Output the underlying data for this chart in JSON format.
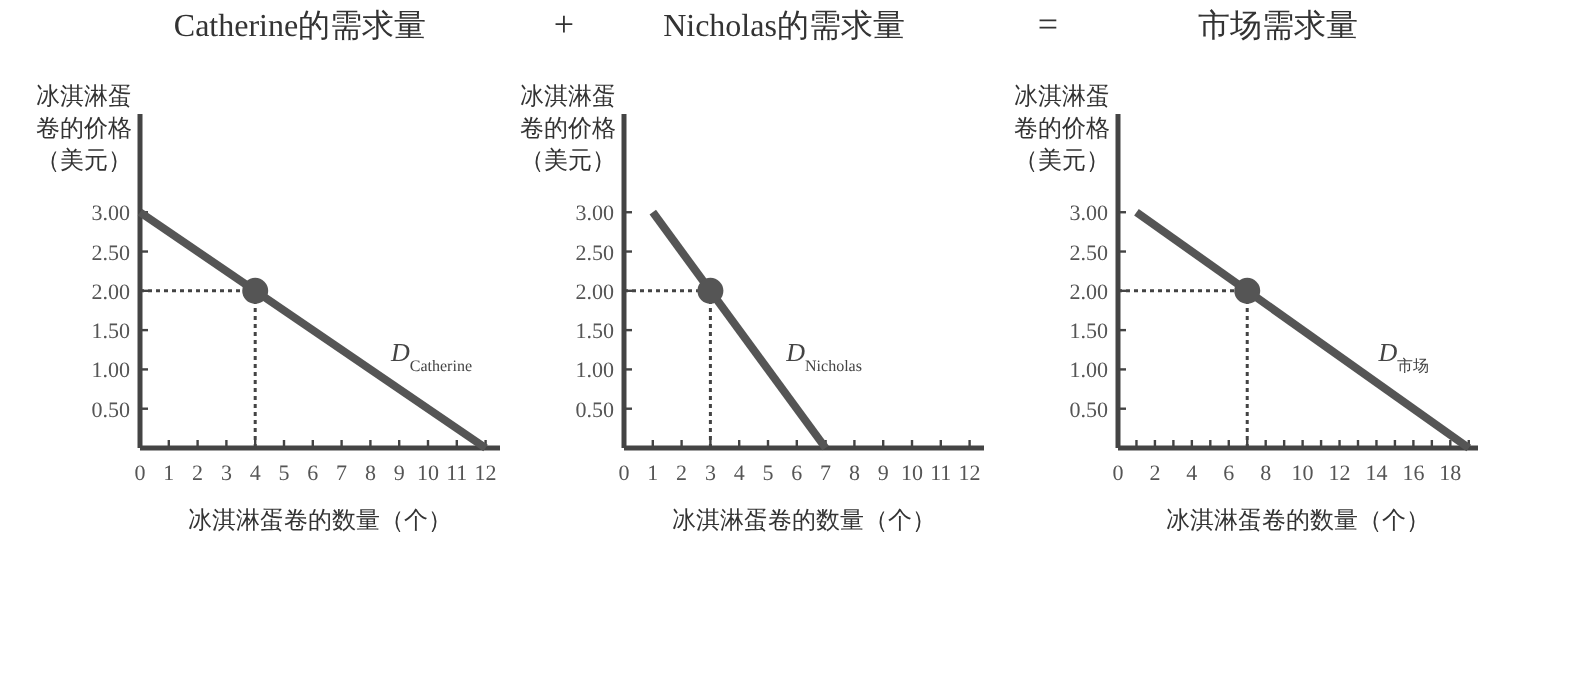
{
  "chart_data": [
    {
      "type": "line",
      "title": "Catherine的需求量",
      "xlabel": "冰淇淋蛋卷的数量（个）",
      "ylabel": "冰淇淋蛋卷的价格（美元）",
      "annotations": [
        "+"
      ],
      "grid": false,
      "series": [
        {
          "name": "D$_{Catherine}$",
          "color": "#555555",
          "x": [
            0,
            12
          ],
          "values": [
            3,
            0
          ]
        },
        {
          "type": "scatter",
          "marker": "circle",
          "color": "#555555",
          "x": [
            4
          ],
          "values": [
            2
          ]
        }
      ],
      "ref_lines": [
        {
          "axis": "x",
          "value": 4,
          "line_style": "dotted"
        },
        {
          "axis": "y",
          "value": 2,
          "line_style": "dotted"
        }
      ],
      "xlim": [
        0,
        12.5
      ],
      "ylim": [
        0,
        4.25
      ],
      "xticks": [
        0,
        1,
        2,
        3,
        4,
        5,
        6,
        7,
        8,
        9,
        10,
        11,
        12
      ],
      "yticks": [
        {
          "value": 0.5,
          "label": "0.50"
        },
        {
          "value": 1,
          "label": "1.00"
        },
        {
          "value": 1.5,
          "label": "1.50"
        },
        {
          "value": 2,
          "label": "2.00"
        },
        {
          "value": 2.5,
          "label": "2.50"
        },
        {
          "value": 3,
          "label": "3.00"
        }
      ]
    },
    {
      "type": "line",
      "title": "Nicholas的需求量",
      "xlabel": "冰淇淋蛋卷的数量（个）",
      "ylabel": "冰淇淋蛋卷的价格（美元）",
      "annotations": [
        "="
      ],
      "grid": false,
      "series": [
        {
          "name": "D$_{Nicholas}$",
          "color": "#555555",
          "x": [
            1,
            7
          ],
          "values": [
            3,
            0
          ]
        },
        {
          "type": "scatter",
          "marker": "circle",
          "color": "#555555",
          "x": [
            3
          ],
          "values": [
            2
          ]
        }
      ],
      "ref_lines": [
        {
          "axis": "x",
          "value": 3,
          "line_style": "dotted"
        },
        {
          "axis": "y",
          "value": 2,
          "line_style": "dotted"
        }
      ],
      "xlim": [
        0,
        12.5
      ],
      "ylim": [
        0,
        4.25
      ],
      "xticks": [
        0,
        1,
        2,
        3,
        4,
        5,
        6,
        7,
        8,
        9,
        10,
        11,
        12
      ],
      "yticks": [
        {
          "value": 0.5,
          "label": "0.50"
        },
        {
          "value": 1,
          "label": "1.00"
        },
        {
          "value": 1.5,
          "label": "1.50"
        },
        {
          "value": 2,
          "label": "2.00"
        },
        {
          "value": 2.5,
          "label": "2.50"
        },
        {
          "value": 3,
          "label": "3.00"
        }
      ]
    },
    {
      "type": "line",
      "title": "市场需求量",
      "xlabel": "冰淇淋蛋卷的数量（个）",
      "ylabel": "冰淇淋蛋卷的价格（美元）",
      "grid": false,
      "series": [
        {
          "name": "D$_{市场}$",
          "color": "#555555",
          "x": [
            1,
            19
          ],
          "values": [
            3,
            0
          ]
        },
        {
          "type": "scatter",
          "marker": "circle",
          "color": "#555555",
          "x": [
            7
          ],
          "values": [
            2
          ]
        }
      ],
      "ref_lines": [
        {
          "axis": "x",
          "value": 7,
          "line_style": "dotted"
        },
        {
          "axis": "y",
          "value": 2,
          "line_style": "dotted"
        }
      ],
      "xlim": [
        0,
        19.5
      ],
      "ylim": [
        0,
        4.25
      ],
      "xticks": [
        0,
        {
          "value": 1,
          "label": null
        },
        2,
        {
          "value": 3,
          "label": null
        },
        4,
        {
          "value": 5,
          "label": null
        },
        6,
        {
          "value": 7,
          "label": null
        },
        8,
        {
          "value": 9,
          "label": null
        },
        10,
        {
          "value": 11,
          "label": null
        },
        12,
        {
          "value": 13,
          "label": null
        },
        14,
        {
          "value": 15,
          "label": null
        },
        16,
        {
          "value": 17,
          "label": null
        },
        18,
        {
          "value": 19,
          "label": null
        }
      ],
      "yticks": [
        {
          "value": 0.5,
          "label": "0.50"
        },
        {
          "value": 1,
          "label": "1.00"
        },
        {
          "value": 1.5,
          "label": "1.50"
        },
        {
          "value": 2,
          "label": "2.00"
        },
        {
          "value": 2.5,
          "label": "2.50"
        },
        {
          "value": 3,
          "label": "3.00"
        }
      ]
    }
  ]
}
